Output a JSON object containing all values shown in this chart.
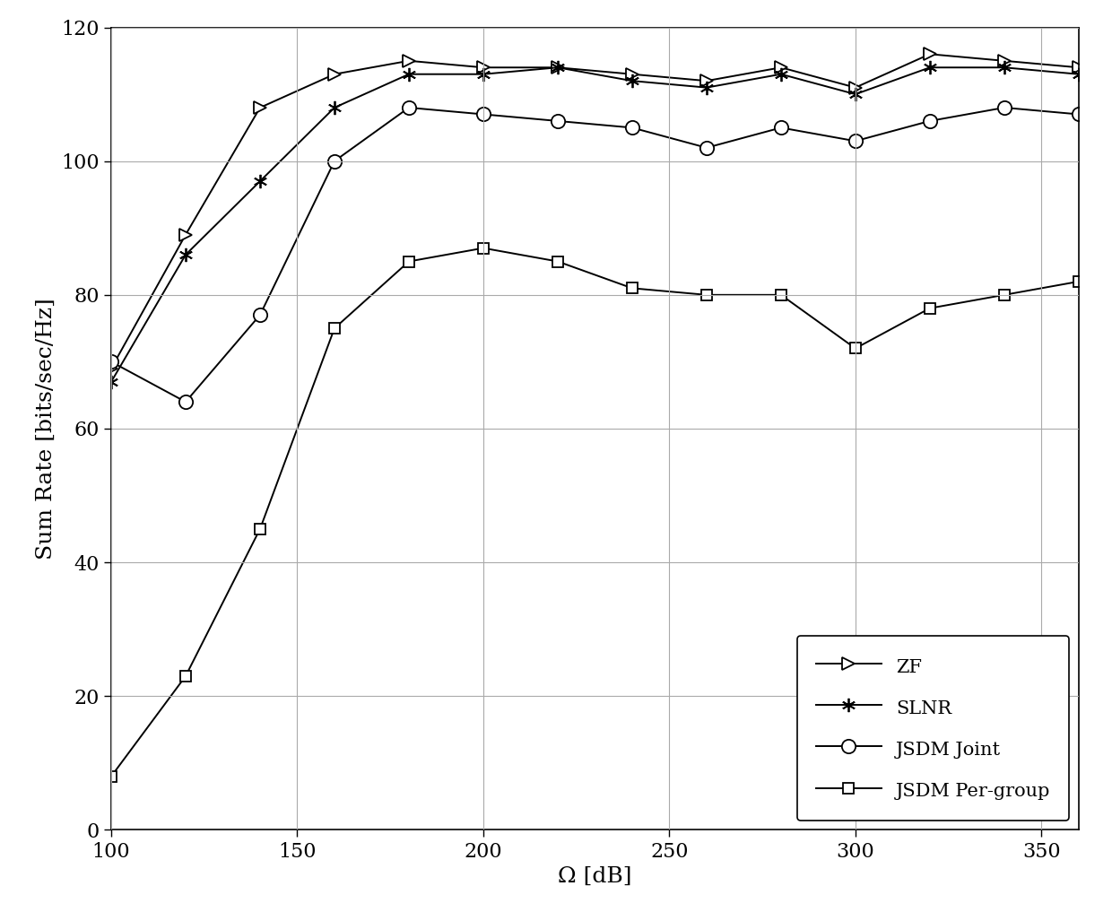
{
  "title": "",
  "xlabel": "Ω [dB]",
  "ylabel": "Sum Rate [bits/sec/Hz]",
  "xlim": [
    100,
    360
  ],
  "ylim": [
    0,
    120
  ],
  "xticks": [
    100,
    150,
    200,
    250,
    300,
    350
  ],
  "yticks": [
    0,
    20,
    40,
    60,
    80,
    100,
    120
  ],
  "ZF_x": [
    100,
    120,
    140,
    160,
    180,
    200,
    220,
    240,
    260,
    280,
    300,
    320,
    340,
    360
  ],
  "ZF_y": [
    69,
    89,
    108,
    113,
    115,
    114,
    114,
    113,
    112,
    114,
    111,
    116,
    115,
    114
  ],
  "SLNR_x": [
    100,
    120,
    140,
    160,
    180,
    200,
    220,
    240,
    260,
    280,
    300,
    320,
    340,
    360
  ],
  "SLNR_y": [
    67,
    86,
    97,
    108,
    113,
    113,
    114,
    112,
    111,
    113,
    110,
    114,
    114,
    113
  ],
  "JSDM_Joint_x": [
    100,
    120,
    140,
    160,
    180,
    200,
    220,
    240,
    260,
    280,
    300,
    320,
    340,
    360
  ],
  "JSDM_Joint_y": [
    70,
    64,
    77,
    100,
    108,
    107,
    106,
    105,
    102,
    105,
    103,
    106,
    108,
    107
  ],
  "JSDM_Pergroup_x": [
    100,
    120,
    140,
    160,
    180,
    200,
    220,
    240,
    260,
    280,
    300,
    320,
    340,
    360
  ],
  "JSDM_Pergroup_y": [
    8,
    23,
    45,
    75,
    85,
    87,
    85,
    81,
    80,
    80,
    72,
    78,
    80,
    82
  ],
  "line_color": "#000000",
  "background_color": "#ffffff",
  "grid_color": "#aaaaaa",
  "legend_labels": [
    "ZF",
    "SLNR",
    "JSDM Joint",
    "JSDM Per-group"
  ],
  "label_fontsize": 18,
  "tick_fontsize": 16,
  "legend_fontsize": 15,
  "linewidth": 1.4,
  "markersize_triangle": 10,
  "markersize_cross": 11,
  "markersize_circle": 11,
  "markersize_square": 9
}
